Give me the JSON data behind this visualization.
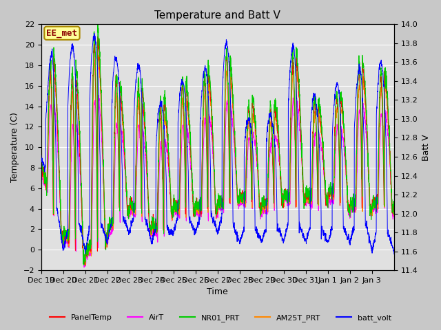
{
  "title": "Temperature and Batt V",
  "xlabel": "Time",
  "ylabel_left": "Temperature (C)",
  "ylabel_right": "Batt V",
  "ylim_left": [
    -2,
    22
  ],
  "ylim_right": [
    11.4,
    14.0
  ],
  "fig_bg_color": "#c8c8c8",
  "plot_bg_color": "#e0e0e0",
  "annotation_text": "EE_met",
  "annotation_color": "#8b0000",
  "annotation_bg": "#ffff99",
  "annotation_edge": "#aa8800",
  "legend_entries": [
    "PanelTemp",
    "AirT",
    "NR01_PRT",
    "AM25T_PRT",
    "batt_volt"
  ],
  "legend_colors": [
    "#ff0000",
    "#ff00ff",
    "#00cc00",
    "#ff8800",
    "#0000ff"
  ],
  "line_colors": {
    "PanelTemp": "#ff0000",
    "AirT": "#ff00ff",
    "NR01_PRT": "#00cc00",
    "AM25T_PRT": "#ff8800",
    "batt_volt": "#0000ff"
  },
  "x_tick_labels": [
    "Dec 19",
    "Dec 20",
    "Dec 21",
    "Dec 22",
    "Dec 23",
    "Dec 24",
    "Dec 25",
    "Dec 26",
    "Dec 27",
    "Dec 28",
    "Dec 29",
    "Dec 30",
    "Dec 31",
    "Jan 1",
    "Jan 2",
    "Jan 3"
  ],
  "title_fontsize": 11,
  "axis_fontsize": 9,
  "tick_fontsize": 8
}
